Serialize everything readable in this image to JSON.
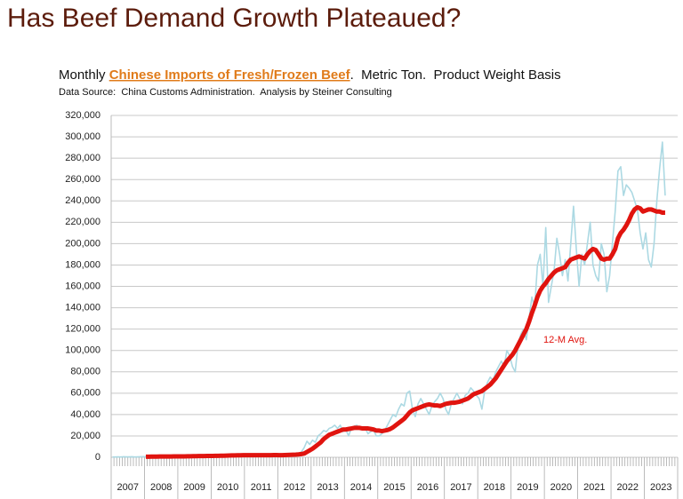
{
  "chart_data": {
    "type": "line",
    "title": "Has Beef Demand Growth Plateaued?",
    "subtitle": [
      "Monthly ",
      "Chinese Imports of Fresh/Frozen Beef",
      ".  Metric Ton.  Product Weight Basis"
    ],
    "source": "Data Source:  China Customs Administration.  Analysis by Steiner Consulting",
    "categories": [
      null,
      null,
      null,
      null,
      null,
      null,
      "2007",
      null,
      null,
      null,
      null,
      null,
      null,
      null,
      null,
      null,
      null,
      null,
      "2008",
      null,
      null,
      null,
      null,
      null,
      null,
      null,
      null,
      null,
      null,
      null,
      "2009",
      null,
      null,
      null,
      null,
      null,
      null,
      null,
      null,
      null,
      null,
      null,
      "2010",
      null,
      null,
      null,
      null,
      null,
      null,
      null,
      null,
      null,
      null,
      null,
      "2011",
      null,
      null,
      null,
      null,
      null,
      null,
      null,
      null,
      null,
      null,
      null,
      "2012",
      null,
      null,
      null,
      null,
      null,
      null,
      null,
      null,
      null,
      null,
      null,
      "2013",
      null,
      null,
      null,
      null,
      null,
      null,
      null,
      null,
      null,
      null,
      null,
      "2014",
      null,
      null,
      null,
      null,
      null,
      null,
      null,
      null,
      null,
      null,
      null,
      "2015",
      null,
      null,
      null,
      null,
      null,
      null,
      null,
      null,
      null,
      null,
      null,
      "2016",
      null,
      null,
      null,
      null,
      null,
      null,
      null,
      null,
      null,
      null,
      null,
      "2017",
      null,
      null,
      null,
      null,
      null,
      null,
      null,
      null,
      null,
      null,
      null,
      "2018",
      null,
      null,
      null,
      null,
      null,
      null,
      null,
      null,
      null,
      null,
      null,
      "2019",
      null,
      null,
      null,
      null,
      null,
      null,
      null,
      null,
      null,
      null,
      null,
      "2020",
      null,
      null,
      null,
      null,
      null,
      null,
      null,
      null,
      null,
      null,
      null,
      "2021",
      null,
      null,
      null,
      null,
      null,
      null,
      null,
      null,
      null,
      null,
      null,
      "2022",
      null,
      null,
      null,
      null,
      null,
      null,
      null,
      null,
      null,
      null,
      null,
      "2023",
      null
    ],
    "series": [
      {
        "color": "#acd9e3",
        "values": [
          300,
          300,
          400,
          300,
          500,
          400,
          400,
          500,
          300,
          400,
          500,
          600,
          600,
          700,
          500,
          800,
          700,
          900,
          800,
          700,
          900,
          1000,
          800,
          900,
          1000,
          1200,
          900,
          1300,
          1100,
          1400,
          1200,
          1300,
          1500,
          1200,
          1400,
          1600,
          1500,
          1800,
          2000,
          1700,
          2200,
          2500,
          2000,
          1800,
          2400,
          2600,
          2200,
          2000,
          1800,
          2000,
          1700,
          2100,
          1900,
          2200,
          2000,
          1800,
          2100,
          2300,
          2000,
          2200,
          2000,
          1800,
          2200,
          2500,
          2400,
          2800,
          3000,
          3500,
          5000,
          9000,
          15000,
          12000,
          16000,
          14000,
          20000,
          22000,
          25000,
          24000,
          27000,
          28000,
          30000,
          27000,
          30000,
          24000,
          26000,
          20000,
          27000,
          29000,
          30000,
          26000,
          28000,
          27000,
          22000,
          24000,
          25000,
          20000,
          20000,
          22000,
          25000,
          30000,
          35000,
          40000,
          38000,
          45000,
          50000,
          48000,
          60000,
          62000,
          45000,
          38000,
          50000,
          55000,
          50000,
          45000,
          40000,
          48000,
          52000,
          55000,
          60000,
          55000,
          45000,
          40000,
          50000,
          55000,
          60000,
          55000,
          50000,
          58000,
          60000,
          65000,
          62000,
          58000,
          55000,
          45000,
          62000,
          70000,
          75000,
          72000,
          80000,
          85000,
          90000,
          85000,
          100000,
          95000,
          85000,
          80000,
          105000,
          115000,
          120000,
          110000,
          130000,
          150000,
          140000,
          180000,
          190000,
          160000,
          215000,
          145000,
          160000,
          175000,
          205000,
          190000,
          170000,
          185000,
          165000,
          200000,
          235000,
          195000,
          160000,
          190000,
          180000,
          200000,
          220000,
          180000,
          170000,
          165000,
          200000,
          190000,
          155000,
          170000,
          200000,
          230000,
          268000,
          272000,
          245000,
          255000,
          252000,
          248000,
          240000,
          232000,
          210000,
          195000,
          210000,
          185000,
          178000,
          200000,
          240000,
          270000,
          295000,
          245000
        ]
      },
      {
        "name": "12-M Avg.",
        "color": "#e0140f",
        "values": [
          null,
          null,
          null,
          null,
          null,
          null,
          null,
          null,
          null,
          null,
          null,
          null,
          500,
          550,
          600,
          620,
          650,
          680,
          700,
          720,
          740,
          760,
          780,
          800,
          820,
          850,
          880,
          900,
          950,
          1000,
          1050,
          1100,
          1150,
          1180,
          1200,
          1250,
          1300,
          1350,
          1400,
          1450,
          1500,
          1600,
          1700,
          1750,
          1800,
          1850,
          1900,
          1950,
          2000,
          2000,
          2000,
          2000,
          2000,
          2000,
          2000,
          2000,
          2000,
          2000,
          2050,
          2050,
          2000,
          2000,
          2100,
          2200,
          2300,
          2400,
          2500,
          2700,
          3000,
          3500,
          5000,
          6500,
          8000,
          10000,
          12000,
          14000,
          17000,
          19000,
          21000,
          22000,
          23000,
          24000,
          25000,
          26000,
          26000,
          26500,
          27000,
          27500,
          27500,
          27500,
          27000,
          27000,
          27000,
          26500,
          26000,
          25000,
          25000,
          24500,
          25000,
          25500,
          26500,
          28000,
          30000,
          32000,
          34000,
          36000,
          39000,
          42000,
          44000,
          45000,
          46000,
          47000,
          48000,
          49000,
          49500,
          49000,
          48500,
          48500,
          48000,
          49000,
          50000,
          50500,
          51000,
          51000,
          51500,
          52000,
          53000,
          54000,
          55000,
          57000,
          59000,
          60000,
          61000,
          62000,
          64000,
          66000,
          68000,
          71000,
          74000,
          78000,
          82000,
          86000,
          90000,
          93000,
          96000,
          100000,
          105000,
          110000,
          115000,
          120000,
          127000,
          135000,
          142000,
          150000,
          156000,
          160000,
          163000,
          167000,
          170000,
          173000,
          175000,
          176000,
          177000,
          178000,
          182000,
          185000,
          186000,
          187000,
          188000,
          187000,
          186000,
          190000,
          193000,
          195000,
          194000,
          190000,
          186000,
          185000,
          186000,
          186000,
          190000,
          195000,
          205000,
          210000,
          213000,
          217000,
          222000,
          228000,
          232000,
          234000,
          233000,
          230000,
          231000,
          232000,
          232000,
          231000,
          230000,
          230000,
          229000,
          229000
        ]
      }
    ],
    "ylim": [
      0,
      320000
    ],
    "yticks": [
      0,
      {
        "value": 20000,
        "label": "20,000"
      },
      {
        "value": 40000,
        "label": "40,000"
      },
      {
        "value": 60000,
        "label": "60,000"
      },
      {
        "value": 80000,
        "label": "80,000"
      },
      {
        "value": 100000,
        "label": "100,000"
      },
      {
        "value": 120000,
        "label": "120,000"
      },
      {
        "value": 140000,
        "label": "140,000"
      },
      {
        "value": 160000,
        "label": "160,000"
      },
      {
        "value": 180000,
        "label": "180,000"
      },
      {
        "value": 200000,
        "label": "200,000"
      },
      {
        "value": 220000,
        "label": "220,000"
      },
      {
        "value": 240000,
        "label": "240,000"
      },
      {
        "value": 260000,
        "label": "260,000"
      },
      {
        "value": 280000,
        "label": "280,000"
      },
      {
        "value": 300000,
        "label": "300,000"
      },
      {
        "value": 320000,
        "label": "320,000"
      }
    ],
    "grid": true
  }
}
